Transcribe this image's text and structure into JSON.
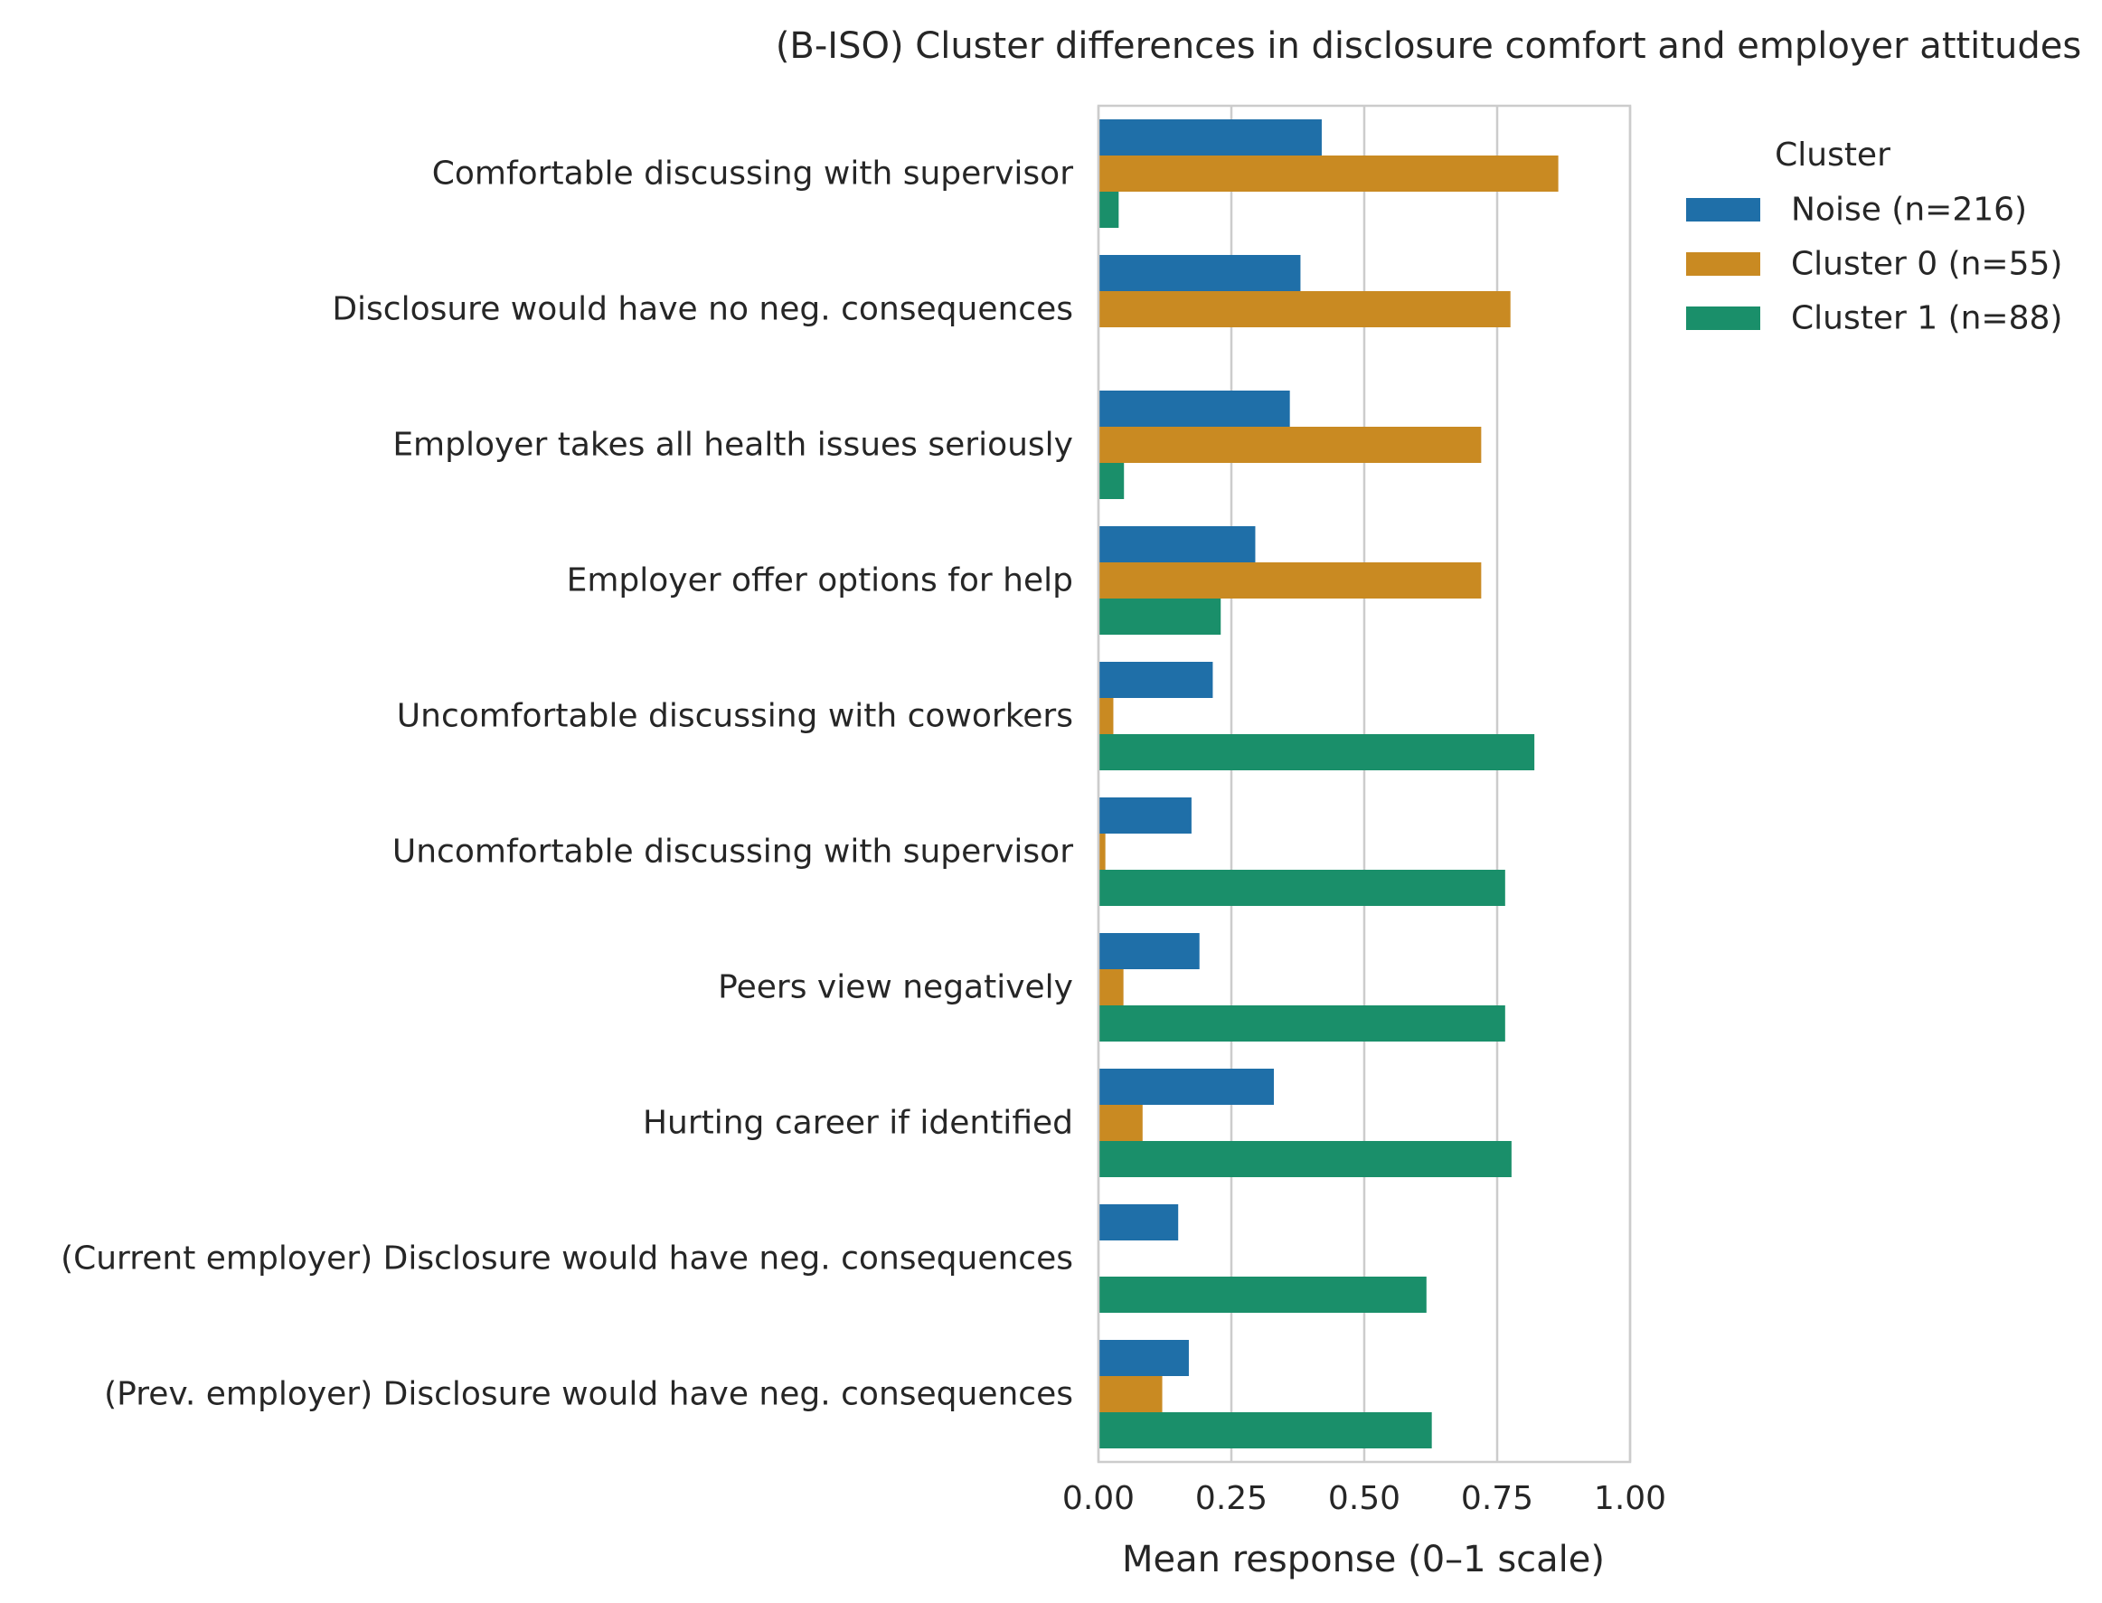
{
  "chart_data": {
    "type": "bar",
    "orientation": "horizontal",
    "title": "(B-ISO) Cluster differences in disclosure comfort and employer attitudes",
    "xlabel": "Mean response (0–1 scale)",
    "ylabel": "",
    "xlim": [
      0,
      1
    ],
    "xticks": [
      0,
      0.25,
      0.5,
      0.75,
      1
    ],
    "xtick_labels": [
      "0.00",
      "0.25",
      "0.50",
      "0.75",
      "1.00"
    ],
    "grid": true,
    "legend": {
      "title": "Cluster",
      "position": "outside-top-right"
    },
    "categories": [
      "Comfortable discussing with supervisor",
      "Disclosure would have no neg. consequences",
      "Employer takes all health issues seriously",
      "Employer offer options for help",
      "Uncomfortable discussing with coworkers",
      "Uncomfortable discussing with supervisor",
      "Peers view negatively",
      "Hurting career if identified",
      "(Current employer) Disclosure would have neg. consequences",
      "(Prev. employer) Disclosure would have neg. consequences"
    ],
    "series": [
      {
        "name": "Noise (n=216)",
        "color": "#1f6fa8",
        "values": [
          0.42,
          0.38,
          0.36,
          0.295,
          0.215,
          0.175,
          0.19,
          0.33,
          0.15,
          0.17
        ]
      },
      {
        "name": "Cluster 0 (n=55)",
        "color": "#c98a22",
        "values": [
          0.865,
          0.775,
          0.72,
          0.72,
          0.028,
          0.013,
          0.047,
          0.083,
          0.0,
          0.12
        ]
      },
      {
        "name": "Cluster 1 (n=88)",
        "color": "#1a8f6a",
        "values": [
          0.038,
          0.0,
          0.048,
          0.23,
          0.82,
          0.765,
          0.765,
          0.777,
          0.617,
          0.627
        ]
      }
    ]
  }
}
